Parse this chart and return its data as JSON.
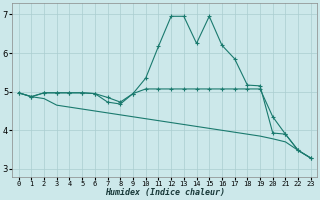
{
  "xlabel": "Humidex (Indice chaleur)",
  "background_color": "#cce8ea",
  "grid_color": "#aacdd0",
  "line_color": "#1a7a6e",
  "xlim": [
    -0.5,
    23.5
  ],
  "ylim": [
    2.8,
    7.3
  ],
  "xticks": [
    0,
    1,
    2,
    3,
    4,
    5,
    6,
    7,
    8,
    9,
    10,
    11,
    12,
    13,
    14,
    15,
    16,
    17,
    18,
    19,
    20,
    21,
    22,
    23
  ],
  "yticks": [
    3,
    4,
    5,
    6,
    7
  ],
  "line1_x": [
    0,
    1,
    2,
    3,
    4,
    5,
    6,
    7,
    8,
    9,
    10,
    11,
    12,
    13,
    14,
    15,
    16,
    17,
    18,
    19,
    20,
    21,
    22,
    23
  ],
  "line1_y": [
    4.97,
    4.87,
    4.97,
    4.97,
    4.97,
    4.97,
    4.95,
    4.85,
    4.73,
    4.95,
    5.35,
    6.17,
    6.95,
    6.95,
    6.25,
    6.95,
    6.2,
    5.85,
    5.17,
    5.15,
    3.93,
    3.9,
    3.48,
    3.28
  ],
  "line2_x": [
    0,
    1,
    2,
    3,
    4,
    5,
    6,
    7,
    8,
    9,
    10,
    11,
    12,
    13,
    14,
    15,
    16,
    17,
    18,
    19,
    20,
    21,
    22,
    23
  ],
  "line2_y": [
    4.97,
    4.87,
    4.97,
    4.97,
    4.97,
    4.97,
    4.95,
    4.73,
    4.68,
    4.95,
    5.07,
    5.07,
    5.07,
    5.07,
    5.07,
    5.07,
    5.07,
    5.07,
    5.07,
    5.07,
    4.35,
    3.9,
    3.48,
    3.28
  ],
  "line3_x": [
    0,
    1,
    2,
    3,
    4,
    5,
    6,
    7,
    8,
    9,
    10,
    11,
    12,
    13,
    14,
    15,
    16,
    17,
    18,
    19,
    20,
    21,
    22,
    23
  ],
  "line3_y": [
    4.97,
    4.87,
    4.82,
    4.65,
    4.6,
    4.55,
    4.5,
    4.45,
    4.4,
    4.35,
    4.3,
    4.25,
    4.2,
    4.15,
    4.1,
    4.05,
    4.0,
    3.95,
    3.9,
    3.85,
    3.78,
    3.7,
    3.48,
    3.28
  ],
  "xlabel_fontsize": 6,
  "tick_fontsize": 5,
  "ytick_fontsize": 6
}
